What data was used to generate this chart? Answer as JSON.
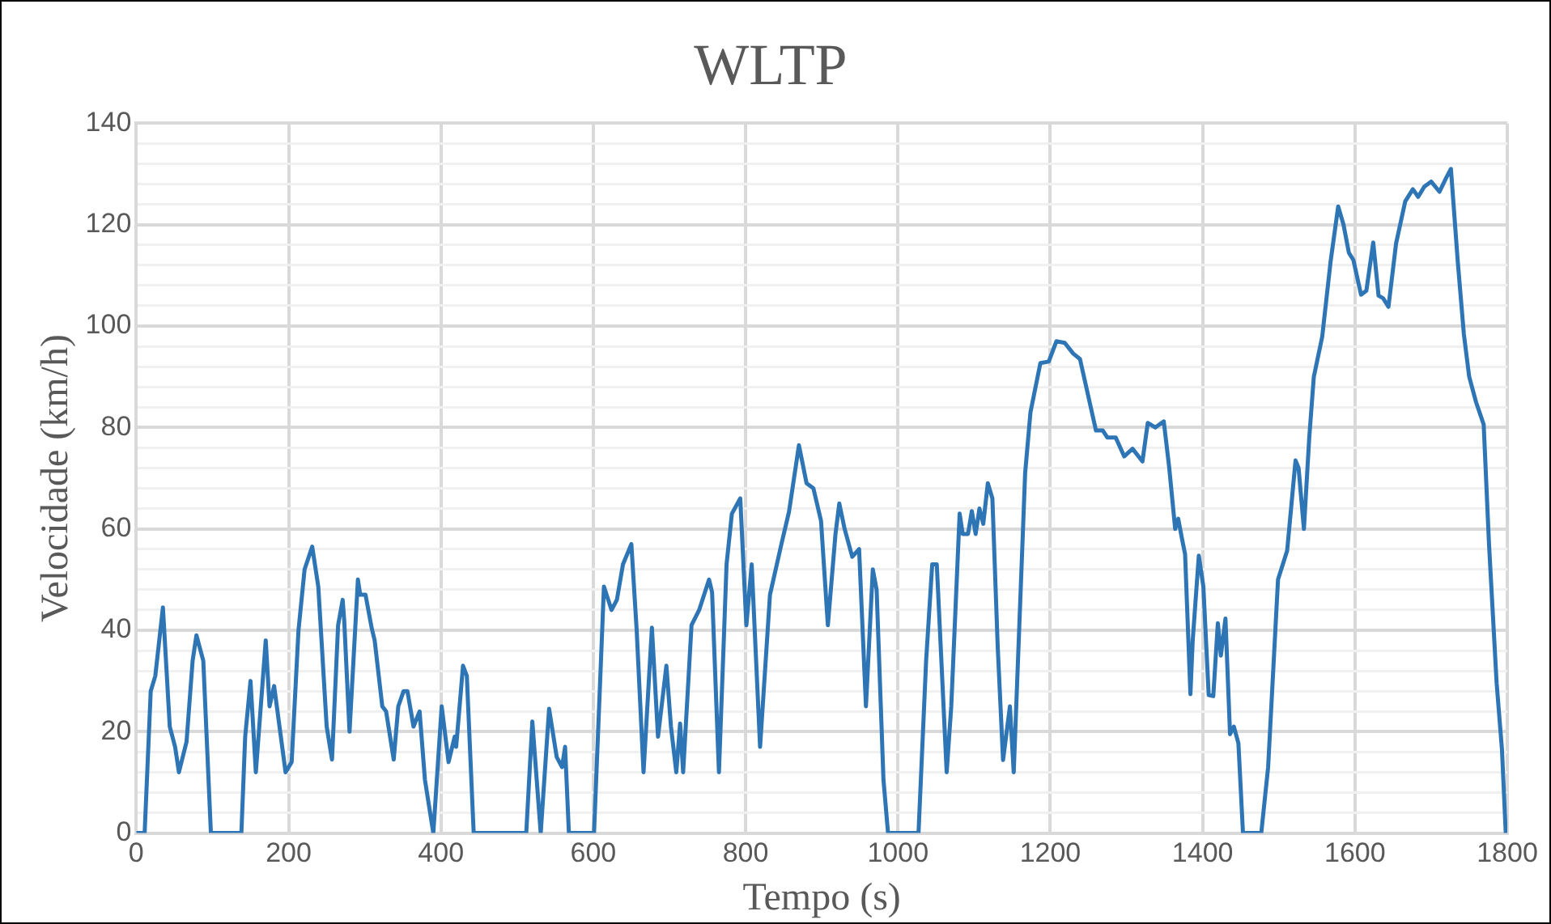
{
  "chart_data": {
    "type": "line",
    "title": "WLTP",
    "xlabel": "Tempo (s)",
    "ylabel": "Velocidade (km/h)",
    "xlim": [
      0,
      1800
    ],
    "xticks": [
      0,
      200,
      400,
      600,
      800,
      1000,
      1200,
      1400,
      1600,
      1800
    ],
    "ylim": [
      0,
      140
    ],
    "yticks": [
      0,
      {
        "value": 4,
        "label": null
      },
      {
        "value": 8,
        "label": null
      },
      {
        "value": 12,
        "label": null
      },
      {
        "value": 16,
        "label": null
      },
      20,
      {
        "value": 24,
        "label": null
      },
      {
        "value": 28,
        "label": null
      },
      {
        "value": 32,
        "label": null
      },
      {
        "value": 36,
        "label": null
      },
      40,
      {
        "value": 44,
        "label": null
      },
      {
        "value": 48,
        "label": null
      },
      {
        "value": 52,
        "label": null
      },
      {
        "value": 56,
        "label": null
      },
      60,
      {
        "value": 64,
        "label": null
      },
      {
        "value": 68,
        "label": null
      },
      {
        "value": 72,
        "label": null
      },
      {
        "value": 76,
        "label": null
      },
      80,
      {
        "value": 84,
        "label": null
      },
      {
        "value": 88,
        "label": null
      },
      {
        "value": 92,
        "label": null
      },
      {
        "value": 96,
        "label": null
      },
      100,
      {
        "value": 104,
        "label": null
      },
      {
        "value": 108,
        "label": null
      },
      {
        "value": 112,
        "label": null
      },
      {
        "value": 116,
        "label": null
      },
      120,
      {
        "value": 124,
        "label": null
      },
      {
        "value": 128,
        "label": null
      },
      {
        "value": 132,
        "label": null
      },
      {
        "value": 136,
        "label": null
      },
      140
    ],
    "grid": true,
    "legend": false,
    "marker": "none",
    "line_style": "solid",
    "series": [
      {
        "color": "#2e75b6",
        "x": [
          0,
          11,
          19,
          25,
          35,
          44,
          51,
          56,
          66,
          74,
          79,
          88,
          98,
          138,
          143,
          150,
          157,
          170,
          175,
          181,
          196,
          204,
          213,
          221,
          231,
          239,
          250,
          257,
          265,
          271,
          273,
          280,
          291,
          294,
          301,
          309,
          313,
          323,
          328,
          338,
          344,
          351,
          356,
          364,
          372,
          379,
          390,
          401,
          410,
          418,
          420,
          429,
          434,
          443,
          512,
          520,
          531,
          542,
          552,
          559,
          563,
          568,
          601,
          614,
          624,
          631,
          639,
          650,
          657,
          666,
          677,
          685,
          696,
          702,
          709,
          714,
          718,
          729,
          739,
          752,
          756,
          765,
          775,
          782,
          793,
          801,
          808,
          819,
          832,
          847,
          857,
          870,
          880,
          889,
          899,
          908,
          918,
          923,
          930,
          940,
          949,
          958,
          967,
          972,
          981,
          987,
          1027,
          1037,
          1045,
          1051,
          1064,
          1070,
          1081,
          1085,
          1092,
          1097,
          1102,
          1107,
          1112,
          1118,
          1124,
          1131,
          1138,
          1147,
          1152,
          1167,
          1174,
          1187,
          1198,
          1208,
          1219,
          1230,
          1239,
          1260,
          1269,
          1275,
          1286,
          1297,
          1308,
          1321,
          1328,
          1338,
          1349,
          1356,
          1364,
          1368,
          1373,
          1377,
          1384,
          1387,
          1395,
          1401,
          1408,
          1414,
          1420,
          1424,
          1430,
          1436,
          1441,
          1447,
          1453,
          1477,
          1486,
          1499,
          1511,
          1522,
          1526,
          1533,
          1540,
          1546,
          1557,
          1568,
          1578,
          1585,
          1592,
          1598,
          1608,
          1615,
          1624,
          1631,
          1637,
          1644,
          1654,
          1666,
          1676,
          1683,
          1691,
          1700,
          1711,
          1720,
          1726,
          1735,
          1743,
          1750,
          1759,
          1769,
          1776,
          1786,
          1793,
          1798,
          1800
        ],
        "values": [
          0,
          0,
          28,
          31,
          44.5,
          21,
          17,
          12,
          18,
          34,
          39,
          34,
          0,
          0,
          19,
          30,
          12,
          38,
          25,
          29,
          12,
          14,
          40,
          52,
          56.5,
          48.6,
          21,
          14.5,
          41,
          46,
          42,
          20,
          50,
          47,
          47,
          40.5,
          38,
          25,
          24,
          14.5,
          25,
          28,
          28,
          21,
          24,
          10.5,
          0,
          25,
          14,
          19,
          17,
          33,
          31,
          0,
          0,
          22,
          0,
          24.5,
          15,
          13,
          17,
          0,
          0,
          48.6,
          44,
          46,
          53,
          57,
          40,
          12,
          40.5,
          19,
          33,
          21,
          12,
          21.6,
          12,
          41,
          44,
          50,
          47.5,
          12,
          53,
          63,
          66,
          41,
          53,
          17,
          47,
          57,
          63.4,
          76.5,
          69,
          68,
          61.6,
          41,
          59,
          65,
          60,
          54.5,
          56,
          25,
          52,
          48,
          10.5,
          0,
          0,
          34,
          53,
          53,
          12,
          25,
          63,
          59,
          59,
          63.5,
          59,
          64,
          61,
          69,
          66,
          36.7,
          14.4,
          25,
          12,
          71,
          83,
          92.7,
          93,
          97,
          96.7,
          94.6,
          93.5,
          79.4,
          79.4,
          78,
          78,
          74.3,
          75.8,
          73.3,
          80.9,
          80,
          81.2,
          72.3,
          60,
          62,
          58,
          55,
          27.4,
          38,
          54.7,
          48.6,
          27.2,
          27,
          41.4,
          35,
          42.3,
          19.5,
          21,
          17.7,
          0,
          0,
          13,
          50,
          55.7,
          73.5,
          72,
          60,
          78,
          90,
          97.9,
          112.7,
          123.6,
          120,
          114.5,
          113,
          106.2,
          107,
          116.5,
          106,
          105.5,
          103.8,
          116.3,
          124.6,
          127,
          125.5,
          127.5,
          128.5,
          126.5,
          129.3,
          131,
          112.7,
          98.4,
          90,
          85,
          80.6,
          57,
          29.6,
          16.5,
          0,
          0
        ]
      }
    ]
  }
}
